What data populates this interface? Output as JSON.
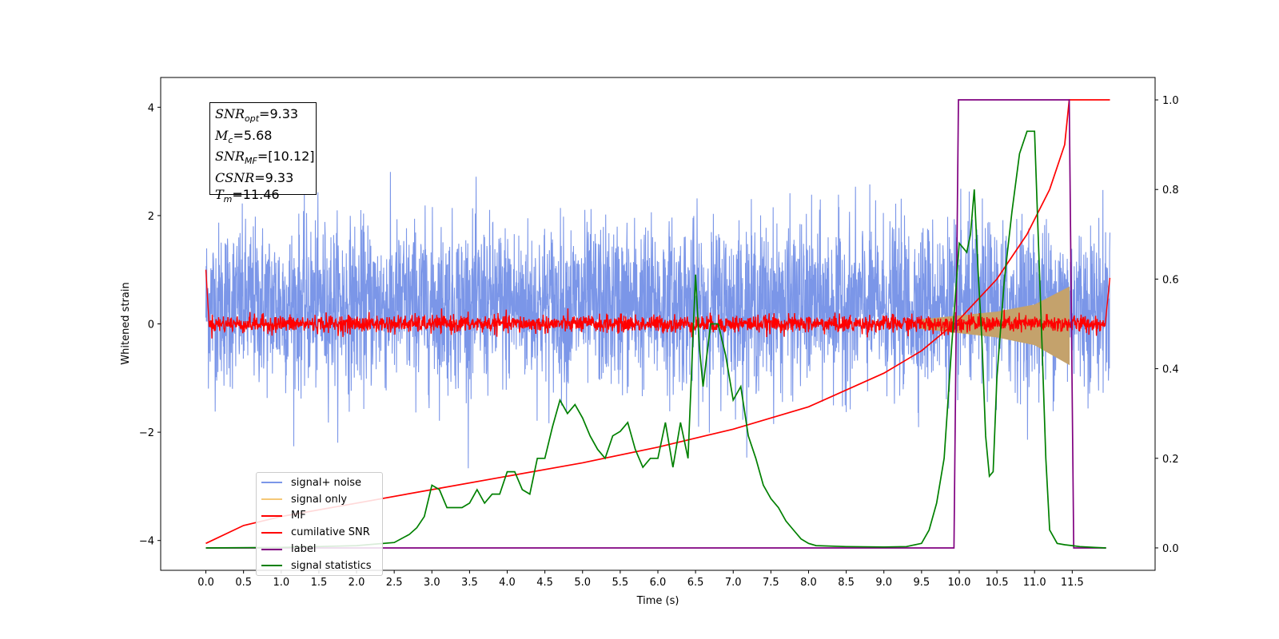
{
  "chart_data": {
    "type": "line",
    "xlabel": "Time (s)",
    "ylabel": "Whitened strain",
    "xlim": [
      -0.6,
      12.6
    ],
    "ylim": [
      -4.55,
      4.55
    ],
    "y2lim": [
      -0.05,
      1.05
    ],
    "xticks": [
      "0.0",
      "0.5",
      "1.0",
      "1.5",
      "2.0",
      "2.5",
      "3.0",
      "3.5",
      "4.0",
      "4.5",
      "5.0",
      "5.5",
      "6.0",
      "6.5",
      "7.0",
      "7.5",
      "8.0",
      "8.5",
      "9.0",
      "9.5",
      "10.0",
      "10.5",
      "11.0",
      "11.5"
    ],
    "yticks": [
      "-4",
      "-2",
      "0",
      "2",
      "4"
    ],
    "y2ticks": [
      "0.0",
      "0.2",
      "0.4",
      "0.6",
      "0.8",
      "1.0"
    ],
    "legend_position": "lower-left",
    "annotations": {
      "snr_opt": {
        "name": "SNR",
        "sub": "opt",
        "value": "=9.33"
      },
      "mc": {
        "name": "M",
        "sub": "c",
        "value": "=5.68"
      },
      "snr_mf": {
        "name": "SNR",
        "sub": "MF",
        "value": "=[10.12]"
      },
      "csnr": {
        "name": "CSNR",
        "sub": "",
        "value": "=9.33"
      },
      "tm": {
        "name": "T",
        "sub": "m",
        "value": "=11.46"
      }
    },
    "series": [
      {
        "name": "signal+ noise",
        "color": "#7b96e8",
        "axis": "left",
        "description_range": [
          -2.7,
          4.1
        ],
        "x_range": [
          0,
          12
        ]
      },
      {
        "name": "signal only",
        "color": "#f5c876",
        "axis": "left",
        "envelope_x": [
          9.5,
          10.0,
          10.5,
          11.0,
          11.46
        ],
        "envelope_y": [
          0.08,
          0.15,
          0.22,
          0.35,
          0.68
        ]
      },
      {
        "name": "MF",
        "color": "#ff0000",
        "axis": "left",
        "x": [
          0.0,
          0.02,
          0.05,
          0.1,
          11.95,
          12.0
        ],
        "y": [
          1.0,
          0.3,
          0.0,
          0.0,
          0.0,
          0.85
        ]
      },
      {
        "name": "cumilative SNR",
        "color": "#ff0000",
        "axis": "right",
        "x": [
          0.0,
          0.5,
          1.0,
          2.0,
          3.0,
          4.0,
          5.0,
          6.0,
          7.0,
          8.0,
          9.0,
          9.5,
          10.0,
          10.5,
          10.9,
          11.2,
          11.4,
          11.46,
          12.0
        ],
        "y": [
          0.01,
          0.05,
          0.07,
          0.1,
          0.13,
          0.16,
          0.19,
          0.225,
          0.265,
          0.315,
          0.39,
          0.44,
          0.51,
          0.6,
          0.7,
          0.8,
          0.9,
          1.0,
          1.0
        ]
      },
      {
        "name": "label",
        "color": "#800080",
        "axis": "right",
        "x": [
          0.0,
          9.93,
          9.99,
          11.46,
          11.52,
          11.95
        ],
        "y": [
          0.0,
          0.0,
          1.0,
          1.0,
          0.0,
          0.0
        ]
      },
      {
        "name": "signal statistics",
        "color": "#008000",
        "axis": "right",
        "x": [
          0.0,
          1.0,
          2.0,
          2.5,
          2.7,
          2.8,
          2.9,
          3.0,
          3.1,
          3.2,
          3.3,
          3.4,
          3.5,
          3.6,
          3.7,
          3.8,
          3.9,
          4.0,
          4.1,
          4.2,
          4.3,
          4.4,
          4.5,
          4.6,
          4.7,
          4.8,
          4.9,
          5.0,
          5.1,
          5.2,
          5.3,
          5.4,
          5.5,
          5.6,
          5.7,
          5.8,
          5.9,
          6.0,
          6.1,
          6.2,
          6.3,
          6.4,
          6.5,
          6.55,
          6.6,
          6.7,
          6.8,
          6.9,
          7.0,
          7.1,
          7.2,
          7.3,
          7.4,
          7.5,
          7.6,
          7.7,
          7.8,
          7.9,
          8.0,
          8.1,
          8.5,
          9.0,
          9.3,
          9.5,
          9.6,
          9.7,
          9.8,
          9.9,
          10.0,
          10.1,
          10.15,
          10.2,
          10.25,
          10.3,
          10.35,
          10.4,
          10.45,
          10.5,
          10.6,
          10.7,
          10.8,
          10.9,
          11.0,
          11.1,
          11.15,
          11.2,
          11.3,
          11.4,
          11.5,
          11.6,
          11.8,
          11.95
        ],
        "y": [
          0.0,
          0.001,
          0.005,
          0.012,
          0.03,
          0.045,
          0.07,
          0.14,
          0.13,
          0.09,
          0.09,
          0.09,
          0.1,
          0.13,
          0.1,
          0.12,
          0.12,
          0.17,
          0.17,
          0.13,
          0.12,
          0.2,
          0.2,
          0.27,
          0.33,
          0.3,
          0.32,
          0.29,
          0.25,
          0.22,
          0.2,
          0.25,
          0.26,
          0.28,
          0.22,
          0.18,
          0.2,
          0.2,
          0.28,
          0.18,
          0.28,
          0.2,
          0.61,
          0.45,
          0.36,
          0.5,
          0.5,
          0.43,
          0.33,
          0.36,
          0.25,
          0.2,
          0.14,
          0.11,
          0.09,
          0.06,
          0.04,
          0.02,
          0.01,
          0.005,
          0.003,
          0.002,
          0.003,
          0.01,
          0.04,
          0.1,
          0.2,
          0.45,
          0.68,
          0.66,
          0.7,
          0.8,
          0.62,
          0.47,
          0.25,
          0.16,
          0.17,
          0.38,
          0.6,
          0.75,
          0.88,
          0.93,
          0.93,
          0.45,
          0.2,
          0.04,
          0.01,
          0.007,
          0.005,
          0.003,
          0.001,
          0.0
        ]
      }
    ]
  }
}
